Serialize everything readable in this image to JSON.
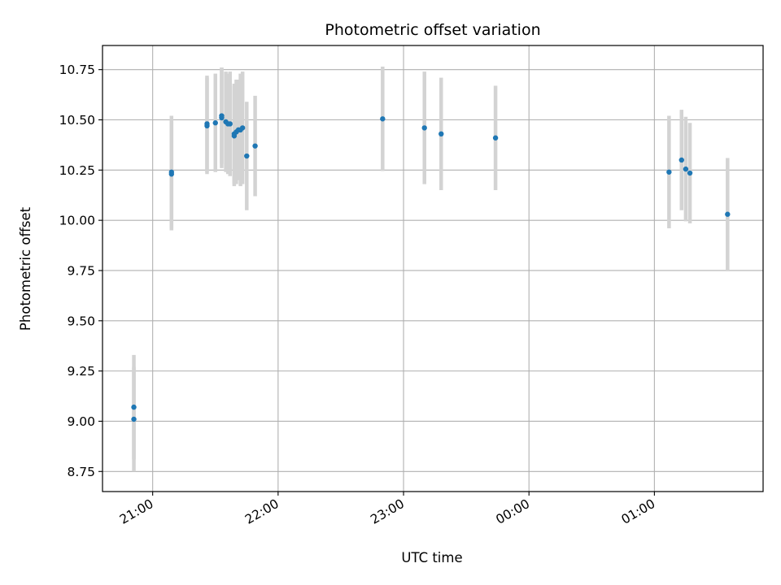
{
  "chart_data": {
    "type": "scatter",
    "title": "Photometric offset variation",
    "xlabel": "UTC time",
    "ylabel": "Photometric offset",
    "grid": true,
    "colors": {
      "point": "#1f77b4",
      "errorbar": "#d3d3d3",
      "grid": "#b0b0b0"
    },
    "x_unit": "UTC time (hours, times after midnight continue past 24:00)",
    "xlim": [
      "20:36",
      "25:52"
    ],
    "ylim": [
      8.65,
      10.87
    ],
    "x_ticks": [
      {
        "label": "21:00",
        "value": "21:00"
      },
      {
        "label": "22:00",
        "value": "22:00"
      },
      {
        "label": "23:00",
        "value": "23:00"
      },
      {
        "label": "00:00",
        "value": "24:00"
      },
      {
        "label": "01:00",
        "value": "25:00"
      }
    ],
    "y_ticks": [
      "8.75",
      "9.00",
      "9.25",
      "9.50",
      "9.75",
      "10.00",
      "10.25",
      "10.50",
      "10.75"
    ],
    "series": [
      {
        "points": [
          {
            "x": "20:51",
            "y": 9.01,
            "err": 0.26
          },
          {
            "x": "20:51",
            "y": 9.07,
            "err": 0.26
          },
          {
            "x": "21:09",
            "y": 10.23,
            "err": 0.28
          },
          {
            "x": "21:09",
            "y": 10.24,
            "err": 0.28
          },
          {
            "x": "21:26",
            "y": 10.48,
            "err": 0.24
          },
          {
            "x": "21:26",
            "y": 10.47,
            "err": 0.24
          },
          {
            "x": "21:30",
            "y": 10.485,
            "err": 0.245
          },
          {
            "x": "21:33",
            "y": 10.51,
            "err": 0.25
          },
          {
            "x": "21:33",
            "y": 10.52,
            "err": 0.24
          },
          {
            "x": "21:35",
            "y": 10.49,
            "err": 0.25
          },
          {
            "x": "21:36",
            "y": 10.48,
            "err": 0.25
          },
          {
            "x": "21:37",
            "y": 10.48,
            "err": 0.26
          },
          {
            "x": "21:39",
            "y": 10.43,
            "err": 0.25
          },
          {
            "x": "21:39",
            "y": 10.42,
            "err": 0.25
          },
          {
            "x": "21:40",
            "y": 10.44,
            "err": 0.26
          },
          {
            "x": "21:41",
            "y": 10.45,
            "err": 0.25
          },
          {
            "x": "21:42",
            "y": 10.45,
            "err": 0.28
          },
          {
            "x": "21:43",
            "y": 10.46,
            "err": 0.28
          },
          {
            "x": "21:45",
            "y": 10.32,
            "err": 0.27
          },
          {
            "x": "21:49",
            "y": 10.37,
            "err": 0.25
          },
          {
            "x": "22:50",
            "y": 10.505,
            "err": 0.26
          },
          {
            "x": "23:10",
            "y": 10.46,
            "err": 0.28
          },
          {
            "x": "23:18",
            "y": 10.43,
            "err": 0.28
          },
          {
            "x": "23:44",
            "y": 10.41,
            "err": 0.26
          },
          {
            "x": "25:07",
            "y": 10.24,
            "err": 0.28
          },
          {
            "x": "25:13",
            "y": 10.3,
            "err": 0.25
          },
          {
            "x": "25:15",
            "y": 10.255,
            "err": 0.26
          },
          {
            "x": "25:17",
            "y": 10.235,
            "err": 0.25
          },
          {
            "x": "25:35",
            "y": 10.03,
            "err": 0.28
          }
        ]
      }
    ]
  }
}
